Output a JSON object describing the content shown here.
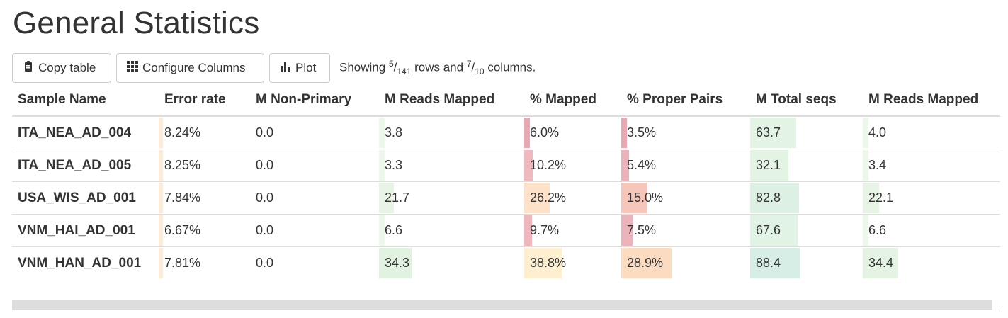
{
  "title": "General Statistics",
  "toolbar": {
    "copy_label": "Copy table",
    "configure_label": "Configure Columns",
    "plot_label": "Plot",
    "showing": {
      "prefix": "Showing ",
      "rows_shown": "5",
      "rows_total": "141",
      "rows_word": " rows and ",
      "cols_shown": "7",
      "cols_total": "10",
      "cols_word": " columns."
    }
  },
  "table": {
    "headers": [
      "Sample Name",
      "Error rate",
      "M Non-Primary",
      "M Reads Mapped",
      "% Mapped",
      "% Proper Pairs",
      "M Total seqs",
      "M Reads Mapped"
    ],
    "column_colors": [
      "",
      "#fdebd7",
      "#f0f8ea",
      "#e2f2e0",
      "#f2b8b8",
      "#f2b8b8",
      "#d7ede5",
      "#e4f3e4"
    ],
    "rows": [
      {
        "name": "ITA_NEA_AD_004",
        "cells": [
          "8.24%",
          "0.0",
          "3.8",
          "6.0%",
          "3.5%",
          "63.7",
          "4.0"
        ],
        "fill": [
          0.01,
          0,
          0.01,
          0.04,
          0.03,
          0.38,
          0.01
        ],
        "color": [
          "#fdebd7",
          "#f0f8ea",
          "#eef7ec",
          "#e9a9b2",
          "#e9a9b2",
          "#e3f4e5",
          "#eef7ec"
        ]
      },
      {
        "name": "ITA_NEA_AD_005",
        "cells": [
          "8.25%",
          "0.0",
          "3.3",
          "10.2%",
          "5.4%",
          "32.1",
          "3.4"
        ],
        "fill": [
          0.01,
          0,
          0.01,
          0.09,
          0.06,
          0.0,
          0.01
        ],
        "color": [
          "#fdebd7",
          "#f0f8ea",
          "#eef7ec",
          "#f0b8bf",
          "#ecb1b9",
          "#e3f4e5",
          "#eef7ec"
        ]
      },
      {
        "name": "USA_WIS_AD_001",
        "cells": [
          "7.84%",
          "0.0",
          "21.7",
          "26.2%",
          "15.0%",
          "82.8",
          "22.1"
        ],
        "fill": [
          0.01,
          0,
          0.1,
          0.26,
          0.2,
          0.5,
          0.12
        ],
        "color": [
          "#fdebd7",
          "#f0f8ea",
          "#e8f5e6",
          "#fde1c8",
          "#f7c6bb",
          "#dcf1e4",
          "#e8f5e6"
        ]
      },
      {
        "name": "VNM_HAI_AD_001",
        "cells": [
          "6.67%",
          "0.0",
          "6.6",
          "9.7%",
          "7.5%",
          "67.6",
          "6.6"
        ],
        "fill": [
          0.01,
          0,
          0.01,
          0.08,
          0.09,
          0.42,
          0.01
        ],
        "color": [
          "#fdebd7",
          "#f0f8ea",
          "#eef7ec",
          "#efb6bd",
          "#edb3ba",
          "#e1f3e5",
          "#eef7ec"
        ]
      },
      {
        "name": "VNM_HAN_AD_001",
        "cells": [
          "7.81%",
          "0.0",
          "34.3",
          "38.8%",
          "28.9%",
          "88.4",
          "34.4"
        ],
        "fill": [
          0.01,
          0,
          0.23,
          0.39,
          0.39,
          0.53,
          0.26
        ],
        "color": [
          "#fdebd7",
          "#f0f8ea",
          "#e2f2e0",
          "#fdefd0",
          "#fbdcc0",
          "#d6eee6",
          "#e4f3e4"
        ]
      }
    ]
  }
}
